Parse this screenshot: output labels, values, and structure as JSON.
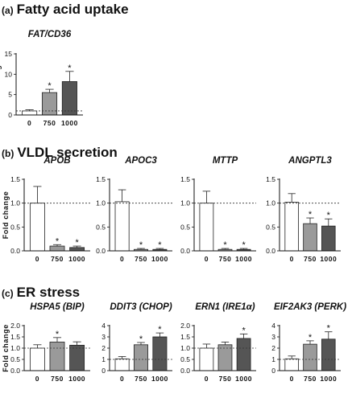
{
  "sections": [
    {
      "letter": "(a)",
      "title": "Fatty acid uptake"
    },
    {
      "letter": "(b)",
      "title": "VLDL secretion"
    },
    {
      "letter": "(c)",
      "title": "ER stress"
    }
  ],
  "colors": {
    "dose_0": "#ffffff",
    "dose_750": "#9a9a9a",
    "dose_1000": "#555555",
    "stroke": "#222222"
  },
  "chart_data": [
    {
      "type": "bar",
      "title": "FAT/CD36",
      "ylabel": "Fold change",
      "categories": [
        "0",
        "750",
        "1000"
      ],
      "values": [
        1.0,
        5.5,
        8.2
      ],
      "errors": [
        0.3,
        0.8,
        2.5
      ],
      "significant": [
        false,
        true,
        true
      ],
      "ylim": [
        0,
        15
      ],
      "yticks": [
        0,
        5,
        10,
        15
      ],
      "reference_line": 1.0
    },
    {
      "type": "bar",
      "title": "APOB",
      "ylabel": "Fold change",
      "categories": [
        "0",
        "750",
        "1000"
      ],
      "values": [
        1.0,
        0.1,
        0.07
      ],
      "errors": [
        0.35,
        0.03,
        0.03
      ],
      "significant": [
        false,
        true,
        true
      ],
      "ylim": [
        0,
        1.5
      ],
      "yticks": [
        0.0,
        0.5,
        1.0,
        1.5
      ],
      "reference_line": 1.0
    },
    {
      "type": "bar",
      "title": "APOC3",
      "ylabel": "",
      "categories": [
        "0",
        "750",
        "1000"
      ],
      "values": [
        1.03,
        0.03,
        0.03
      ],
      "errors": [
        0.25,
        0.02,
        0.02
      ],
      "significant": [
        false,
        true,
        true
      ],
      "ylim": [
        0,
        1.5
      ],
      "yticks": [
        0.0,
        0.5,
        1.0,
        1.5
      ],
      "reference_line": 1.0
    },
    {
      "type": "bar",
      "title": "MTTP",
      "ylabel": "",
      "categories": [
        "0",
        "750",
        "1000"
      ],
      "values": [
        1.0,
        0.03,
        0.03
      ],
      "errors": [
        0.25,
        0.02,
        0.02
      ],
      "significant": [
        false,
        true,
        true
      ],
      "ylim": [
        0,
        1.5
      ],
      "yticks": [
        0.0,
        0.5,
        1.0,
        1.5
      ],
      "reference_line": 1.0
    },
    {
      "type": "bar",
      "title": "ANGPTL3",
      "ylabel": "",
      "categories": [
        "0",
        "750",
        "1000"
      ],
      "values": [
        1.02,
        0.57,
        0.52
      ],
      "errors": [
        0.18,
        0.12,
        0.15
      ],
      "significant": [
        false,
        true,
        true
      ],
      "ylim": [
        0,
        1.5
      ],
      "yticks": [
        0.0,
        0.5,
        1.0,
        1.5
      ],
      "reference_line": 1.0
    },
    {
      "type": "bar",
      "title": "HSPA5 (BIP)",
      "ylabel": "Fold change",
      "categories": [
        "0",
        "750",
        "1000"
      ],
      "values": [
        1.0,
        1.27,
        1.13
      ],
      "errors": [
        0.15,
        0.2,
        0.15
      ],
      "significant": [
        false,
        true,
        false
      ],
      "ylim": [
        0,
        2.0
      ],
      "yticks": [
        0.0,
        0.5,
        1.0,
        1.5,
        2.0
      ],
      "reference_line": 1.0
    },
    {
      "type": "bar",
      "title": "DDIT3 (CHOP)",
      "ylabel": "",
      "categories": [
        "0",
        "750",
        "1000"
      ],
      "values": [
        1.05,
        2.3,
        3.0
      ],
      "errors": [
        0.2,
        0.2,
        0.35
      ],
      "significant": [
        false,
        true,
        true
      ],
      "ylim": [
        0,
        4
      ],
      "yticks": [
        0,
        1,
        2,
        3,
        4
      ],
      "reference_line": 1.0
    },
    {
      "type": "bar",
      "title": "ERN1 (IRE1α)",
      "ylabel": "",
      "categories": [
        "0",
        "750",
        "1000"
      ],
      "values": [
        1.0,
        1.15,
        1.43
      ],
      "errors": [
        0.18,
        0.12,
        0.2
      ],
      "significant": [
        false,
        false,
        true
      ],
      "ylim": [
        0,
        2.0
      ],
      "yticks": [
        0.0,
        0.5,
        1.0,
        1.5,
        2.0
      ],
      "reference_line": 1.0
    },
    {
      "type": "bar",
      "title": "EIF2AK3 (PERK)",
      "ylabel": "",
      "categories": [
        "0",
        "750",
        "1000"
      ],
      "values": [
        1.05,
        2.35,
        2.8
      ],
      "errors": [
        0.25,
        0.3,
        0.65
      ],
      "significant": [
        false,
        true,
        true
      ],
      "ylim": [
        0,
        4
      ],
      "yticks": [
        0,
        1,
        2,
        3,
        4
      ],
      "reference_line": 1.0
    }
  ]
}
